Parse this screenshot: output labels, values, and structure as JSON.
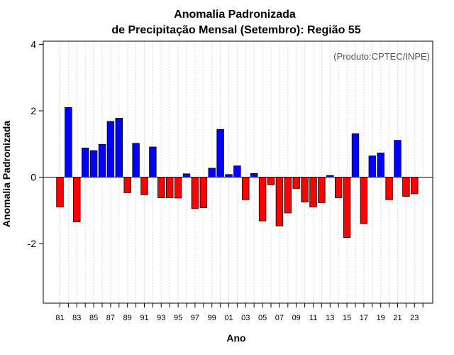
{
  "chart_data": {
    "type": "bar",
    "title": "Anomalia Padronizada",
    "subtitle": "de Precipitação Mensal (Setembro): Região 55",
    "xlabel": "Ano",
    "ylabel": "Anomalia Padronizada",
    "credit": "(Produto:CPTEC/INPE)",
    "ylim": [
      -3.8,
      4.1
    ],
    "yticks": [
      -2,
      0,
      2,
      4
    ],
    "yticklabels": [
      "-2",
      "0",
      "2",
      "4"
    ],
    "categories": [
      "81",
      "82",
      "83",
      "84",
      "85",
      "86",
      "87",
      "88",
      "89",
      "90",
      "91",
      "92",
      "93",
      "94",
      "95",
      "96",
      "97",
      "98",
      "99",
      "00",
      "01",
      "02",
      "03",
      "04",
      "05",
      "06",
      "07",
      "08",
      "09",
      "10",
      "11",
      "12",
      "13",
      "14",
      "15",
      "16",
      "17",
      "18",
      "19",
      "20",
      "21",
      "22",
      "23",
      "24"
    ],
    "xticklabels": [
      "81",
      "83",
      "85",
      "87",
      "89",
      "91",
      "93",
      "95",
      "97",
      "99",
      "01",
      "03",
      "05",
      "07",
      "09",
      "11",
      "13",
      "15",
      "17",
      "19",
      "21",
      "23"
    ],
    "values": [
      -0.9,
      2.1,
      -1.35,
      0.88,
      0.8,
      0.99,
      1.68,
      1.78,
      -0.47,
      1.02,
      -0.53,
      0.91,
      -0.62,
      -0.62,
      -0.63,
      0.1,
      -0.95,
      -0.92,
      0.27,
      1.44,
      0.08,
      0.34,
      -0.68,
      0.11,
      -1.32,
      -0.23,
      -1.47,
      -1.08,
      -0.34,
      -0.75,
      -0.9,
      -0.77,
      0.05,
      -0.62,
      -1.82,
      1.31,
      -1.4,
      0.64,
      0.73,
      -0.68,
      1.11,
      -0.58,
      -0.5,
      null
    ],
    "colors": {
      "positive": "#0000ff",
      "negative": "#ff0000",
      "grid": "#d9d9d9"
    },
    "grid": true
  }
}
